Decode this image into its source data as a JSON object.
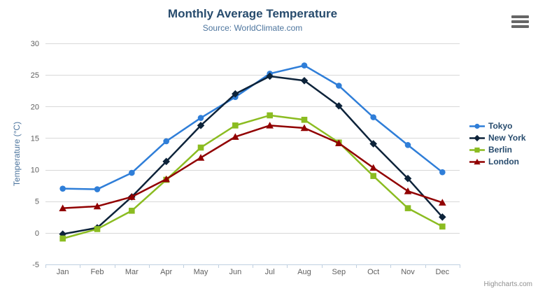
{
  "chart": {
    "title": "Monthly Average Temperature",
    "subtitle": "Source: WorldClimate.com",
    "credit": "Highcharts.com"
  },
  "chart_data": {
    "type": "line",
    "title": "Monthly Average Temperature",
    "subtitle": "Source: WorldClimate.com",
    "categories": [
      "Jan",
      "Feb",
      "Mar",
      "Apr",
      "May",
      "Jun",
      "Jul",
      "Aug",
      "Sep",
      "Oct",
      "Nov",
      "Dec"
    ],
    "xlabel": "",
    "ylabel": "Temperature (°C)",
    "ylim": [
      -5,
      30
    ],
    "yticks": [
      -5,
      0,
      5,
      10,
      15,
      20,
      25,
      30
    ],
    "grid": true,
    "legend_position": "right",
    "series": [
      {
        "name": "Tokyo",
        "color": "#2f7ed8",
        "marker": "circle",
        "values": [
          7.0,
          6.9,
          9.5,
          14.5,
          18.2,
          21.5,
          25.2,
          26.5,
          23.3,
          18.3,
          13.9,
          9.6
        ]
      },
      {
        "name": "New York",
        "color": "#0d233a",
        "marker": "diamond",
        "values": [
          -0.2,
          0.8,
          5.7,
          11.3,
          17.0,
          22.0,
          24.8,
          24.1,
          20.1,
          14.1,
          8.6,
          2.5
        ]
      },
      {
        "name": "Berlin",
        "color": "#8bbc21",
        "marker": "square",
        "values": [
          -0.9,
          0.6,
          3.5,
          8.4,
          13.5,
          17.0,
          18.6,
          17.9,
          14.3,
          9.0,
          3.9,
          1.0
        ]
      },
      {
        "name": "London",
        "color": "#910000",
        "marker": "triangle",
        "values": [
          3.9,
          4.2,
          5.7,
          8.5,
          11.9,
          15.2,
          17.0,
          16.6,
          14.2,
          10.3,
          6.6,
          4.8
        ]
      }
    ]
  },
  "colors": {
    "title": "#274b6d",
    "subtitle": "#4d759e",
    "axis_labels": "#606060",
    "axis_title": "#4d759e",
    "grid_line": "#d8d8d8",
    "axis_line": "#c0d0e0",
    "legend_text": "#274b6d",
    "credit": "#909090",
    "menu_icon": "#666666",
    "background": "#ffffff"
  }
}
